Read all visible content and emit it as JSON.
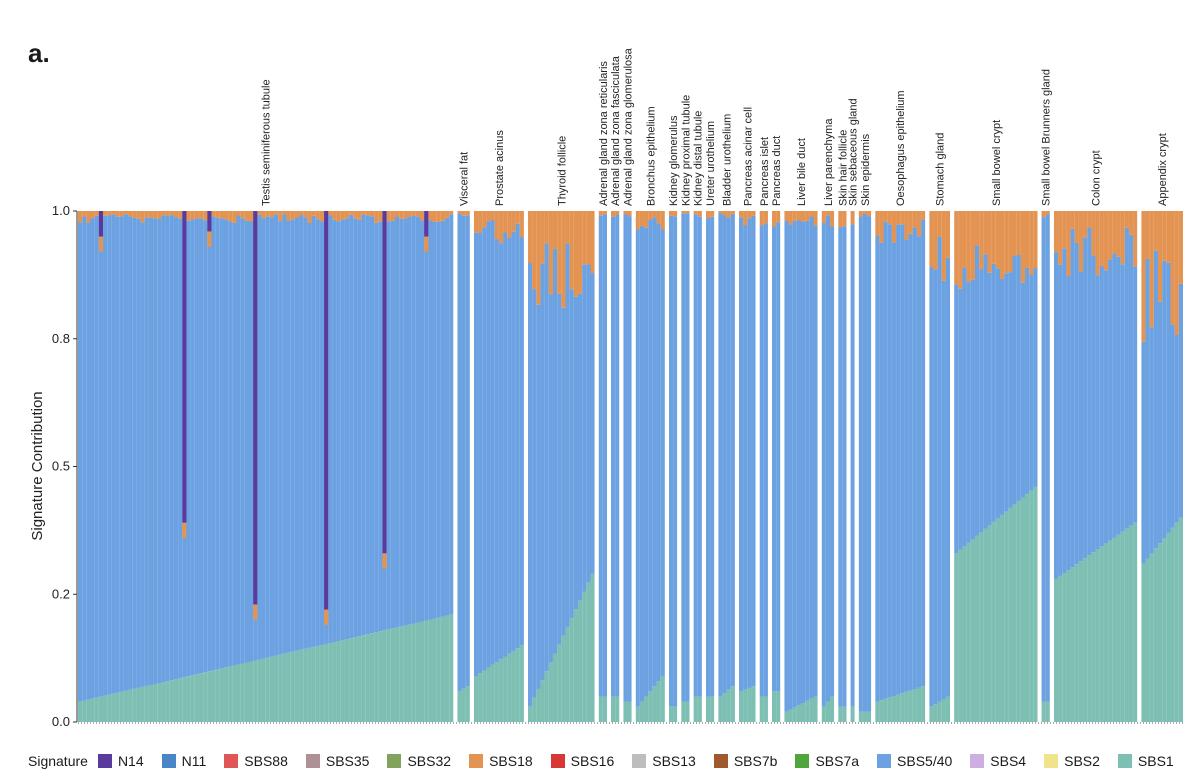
{
  "panel_label": "a.",
  "chart_data": {
    "type": "bar",
    "stacked": true,
    "ylabel": "Signature Contribution",
    "xlabel": "",
    "ylim": [
      0,
      1
    ],
    "yticks": [
      0.0,
      0.2,
      0.5,
      0.8,
      1.0
    ],
    "ytick_labels": [
      "0.0",
      "0.2",
      "0.5",
      "0.8",
      "1.0"
    ],
    "legend_title": "Signature",
    "legend_position": "bottom",
    "legend": [
      {
        "name": "N14",
        "color": "#5b3a9e"
      },
      {
        "name": "N11",
        "color": "#4a86c5"
      },
      {
        "name": "SBS88",
        "color": "#e05555"
      },
      {
        "name": "SBS35",
        "color": "#ad9195"
      },
      {
        "name": "SBS32",
        "color": "#82a35c"
      },
      {
        "name": "SBS18",
        "color": "#e39352"
      },
      {
        "name": "SBS16",
        "color": "#d93636"
      },
      {
        "name": "SBS13",
        "color": "#bdbdbd"
      },
      {
        "name": "SBS7b",
        "color": "#a0592e"
      },
      {
        "name": "SBS7a",
        "color": "#4fa63d"
      },
      {
        "name": "SBS5/40",
        "color": "#6ca2e2"
      },
      {
        "name": "SBS4",
        "color": "#ccaee0"
      },
      {
        "name": "SBS2",
        "color": "#f0e48a"
      },
      {
        "name": "SBS1",
        "color": "#7dbfb2"
      }
    ],
    "tissues": [
      {
        "name": "Testis seminiferous tubule",
        "samples": 90,
        "sbs1": [
          0.04,
          0.21
        ],
        "sbs18": 0.015,
        "spikes": [
          {
            "rel": 0.06,
            "sig": "N14",
            "depth": 0.05
          },
          {
            "rel": 0.28,
            "sig": "N14",
            "depth": 0.61
          },
          {
            "rel": 0.47,
            "sig": "N14",
            "depth": 0.77
          },
          {
            "rel": 0.66,
            "sig": "N14",
            "depth": 0.78
          },
          {
            "rel": 0.82,
            "sig": "N14",
            "depth": 0.67
          },
          {
            "rel": 0.35,
            "sig": "N14",
            "depth": 0.04
          },
          {
            "rel": 0.93,
            "sig": "N14",
            "depth": 0.05
          }
        ]
      },
      {
        "name": "Visceral fat",
        "samples": 3,
        "sbs1": [
          0.06,
          0.07
        ],
        "sbs18": 0.01
      },
      {
        "name": "Prostate acinus",
        "samples": 12,
        "sbs1": [
          0.09,
          0.15
        ],
        "sbs18": 0.04
      },
      {
        "name": "Thyroid follicle",
        "samples": 16,
        "sbs1": [
          0.03,
          0.29
        ],
        "sbs18": 0.12
      },
      {
        "name": "Adrenal gland zona reticularis",
        "samples": 2,
        "sbs1": [
          0.05,
          0.05
        ],
        "sbs18": 0.01
      },
      {
        "name": "Adrenal gland zona fasciculata",
        "samples": 2,
        "sbs1": [
          0.05,
          0.05
        ],
        "sbs18": 0.01
      },
      {
        "name": "Adrenal gland zona glomerulosa",
        "samples": 2,
        "sbs1": [
          0.04,
          0.04
        ],
        "sbs18": 0.01
      },
      {
        "name": "Bronchus epithelium",
        "samples": 7,
        "sbs1": [
          0.03,
          0.09
        ],
        "sbs18": 0.03
      },
      {
        "name": "Kidney glomerulus",
        "samples": 2,
        "sbs1": [
          0.03,
          0.03
        ],
        "sbs18": 0.01
      },
      {
        "name": "Kidney proximal tubule",
        "samples": 2,
        "sbs1": [
          0.04,
          0.04
        ],
        "sbs18": 0.01
      },
      {
        "name": "Kidney distal tubule",
        "samples": 2,
        "sbs1": [
          0.05,
          0.05
        ],
        "sbs18": 0.01
      },
      {
        "name": "Ureter urothelium",
        "samples": 2,
        "sbs1": [
          0.05,
          0.05
        ],
        "sbs18": 0.01
      },
      {
        "name": "Bladder urothelium",
        "samples": 4,
        "sbs1": [
          0.05,
          0.07
        ],
        "sbs18": 0.01
      },
      {
        "name": "Pancreas acinar cell",
        "samples": 4,
        "sbs1": [
          0.06,
          0.07
        ],
        "sbs18": 0.02
      },
      {
        "name": "Pancreas islet",
        "samples": 2,
        "sbs1": [
          0.05,
          0.05
        ],
        "sbs18": 0.03
      },
      {
        "name": "Pancreas duct",
        "samples": 2,
        "sbs1": [
          0.06,
          0.06
        ],
        "sbs18": 0.02
      },
      {
        "name": "Liver bile duct",
        "samples": 8,
        "sbs1": [
          0.02,
          0.05
        ],
        "sbs18": 0.02
      },
      {
        "name": "Liver parenchyma",
        "samples": 3,
        "sbs1": [
          0.03,
          0.05
        ],
        "sbs18": 0.02
      },
      {
        "name": "Skin hair follicle",
        "samples": 2,
        "sbs1": [
          0.03,
          0.03
        ],
        "sbs18": 0.04
      },
      {
        "name": "Skin sebaceous gland",
        "samples": 1,
        "sbs1": [
          0.03,
          0.03
        ],
        "sbs18": 0.02
      },
      {
        "name": "Skin epidermis",
        "samples": 3,
        "sbs1": [
          0.02,
          0.02
        ],
        "sbs18": 0.01
      },
      {
        "name": "Oesophagus epithelium",
        "samples": 12,
        "sbs1": [
          0.04,
          0.07
        ],
        "sbs18": 0.04
      },
      {
        "name": "Stomach gland",
        "samples": 5,
        "sbs1": [
          0.03,
          0.05
        ],
        "sbs18": 0.1
      },
      {
        "name": "Small bowel crypt",
        "samples": 20,
        "sbs1": [
          0.33,
          0.46
        ],
        "sbs18": 0.1
      },
      {
        "name": "Small bowel Brunners gland",
        "samples": 2,
        "sbs1": [
          0.04,
          0.04
        ],
        "sbs18": 0.01
      },
      {
        "name": "Colon crypt",
        "samples": 20,
        "sbs1": [
          0.28,
          0.39
        ],
        "sbs18": 0.08
      },
      {
        "name": "Appendix crypt",
        "samples": 10,
        "sbs1": [
          0.31,
          0.4
        ],
        "sbs18": 0.16
      }
    ]
  }
}
